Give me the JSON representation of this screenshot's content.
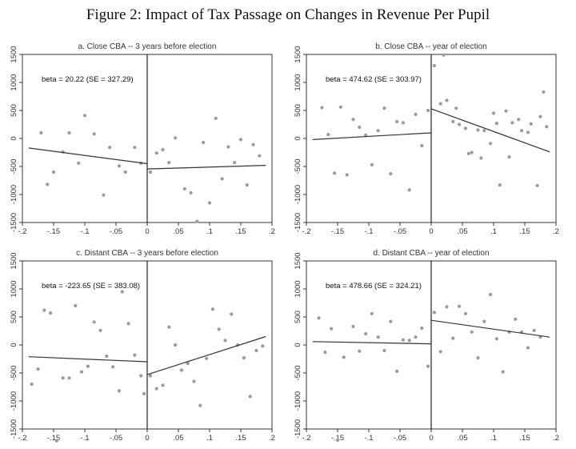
{
  "figure": {
    "title": "Figure 2: Impact of Tax Passage on Changes in Revenue Per Pupil"
  },
  "chart_data": [
    {
      "type": "scatter",
      "title": "a. Close CBA -- 3 years before election",
      "annotation": "beta = 20.22 (SE = 327.29)",
      "xlim": [
        -0.2,
        0.2
      ],
      "ylim": [
        -1500,
        1500
      ],
      "xticks": [
        -0.2,
        -0.15,
        -0.1,
        -0.05,
        0,
        0.05,
        0.1,
        0.15,
        0.2
      ],
      "xtick_labels": [
        "-.2",
        "-.15",
        "-.1",
        "-.05",
        "0",
        ".05",
        ".1",
        ".15",
        ".2"
      ],
      "yticks": [
        -1500,
        -1000,
        -500,
        0,
        500,
        1000,
        1500
      ],
      "ytick_labels": [
        "-1500",
        "-1000",
        "-500",
        "0",
        "500",
        "1000",
        "1500"
      ],
      "points": [
        [
          -0.17,
          100
        ],
        [
          -0.16,
          -820
        ],
        [
          -0.15,
          -600
        ],
        [
          -0.135,
          -240
        ],
        [
          -0.125,
          100
        ],
        [
          -0.11,
          -440
        ],
        [
          -0.1,
          410
        ],
        [
          -0.085,
          80
        ],
        [
          -0.07,
          -1010
        ],
        [
          -0.06,
          -160
        ],
        [
          -0.045,
          -490
        ],
        [
          -0.035,
          -600
        ],
        [
          -0.02,
          -160
        ],
        [
          -0.01,
          -440
        ],
        [
          0.005,
          -600
        ],
        [
          0.015,
          -260
        ],
        [
          0.025,
          -200
        ],
        [
          0.035,
          -430
        ],
        [
          0.045,
          10
        ],
        [
          0.06,
          -900
        ],
        [
          0.07,
          -970
        ],
        [
          0.08,
          -1480
        ],
        [
          0.09,
          -70
        ],
        [
          0.1,
          -1150
        ],
        [
          0.11,
          360
        ],
        [
          0.12,
          -720
        ],
        [
          0.13,
          -150
        ],
        [
          0.14,
          -430
        ],
        [
          0.15,
          -20
        ],
        [
          0.16,
          -830
        ],
        [
          0.17,
          -110
        ],
        [
          0.18,
          -310
        ]
      ],
      "fit_left": [
        [
          -0.19,
          -170
        ],
        [
          0,
          -450
        ]
      ],
      "fit_right": [
        [
          0,
          -545
        ],
        [
          0.19,
          -480
        ]
      ]
    },
    {
      "type": "scatter",
      "title": "b. Close CBA -- year of election",
      "annotation": "beta = 474.62 (SE = 303.97)",
      "xlim": [
        -0.2,
        0.2
      ],
      "ylim": [
        -1500,
        1500
      ],
      "xticks": [
        -0.2,
        -0.15,
        -0.1,
        -0.05,
        0,
        0.05,
        0.1,
        0.15,
        0.2
      ],
      "xtick_labels": [
        "-.2",
        "-.15",
        "-.1",
        "-.05",
        "0",
        ".05",
        ".1",
        ".15",
        ".2"
      ],
      "yticks": [
        -1500,
        -1000,
        -500,
        0,
        500,
        1000,
        1500
      ],
      "ytick_labels": [
        "-1500",
        "-1000",
        "-500",
        "0",
        "500",
        "1000",
        "1500"
      ],
      "points": [
        [
          -0.175,
          550
        ],
        [
          -0.165,
          70
        ],
        [
          -0.155,
          -620
        ],
        [
          -0.145,
          560
        ],
        [
          -0.135,
          -650
        ],
        [
          -0.125,
          340
        ],
        [
          -0.115,
          200
        ],
        [
          -0.105,
          60
        ],
        [
          -0.095,
          -470
        ],
        [
          -0.085,
          140
        ],
        [
          -0.075,
          540
        ],
        [
          -0.065,
          -630
        ],
        [
          -0.055,
          300
        ],
        [
          -0.045,
          280
        ],
        [
          -0.035,
          -920
        ],
        [
          -0.025,
          430
        ],
        [
          -0.015,
          -130
        ],
        [
          -0.005,
          500
        ],
        [
          0.005,
          1300
        ],
        [
          0.015,
          620
        ],
        [
          0.02,
          1490
        ],
        [
          0.025,
          680
        ],
        [
          0.035,
          300
        ],
        [
          0.04,
          540
        ],
        [
          0.045,
          250
        ],
        [
          0.055,
          180
        ],
        [
          0.06,
          -270
        ],
        [
          0.065,
          -250
        ],
        [
          0.075,
          150
        ],
        [
          0.08,
          -350
        ],
        [
          0.085,
          140
        ],
        [
          0.095,
          -90
        ],
        [
          0.1,
          450
        ],
        [
          0.105,
          270
        ],
        [
          0.11,
          -830
        ],
        [
          0.12,
          490
        ],
        [
          0.125,
          -330
        ],
        [
          0.13,
          280
        ],
        [
          0.14,
          340
        ],
        [
          0.145,
          140
        ],
        [
          0.155,
          110
        ],
        [
          0.16,
          260
        ],
        [
          0.17,
          -840
        ],
        [
          0.175,
          390
        ],
        [
          0.18,
          830
        ],
        [
          0.185,
          210
        ]
      ],
      "fit_left": [
        [
          -0.19,
          -20
        ],
        [
          0,
          100
        ]
      ],
      "fit_right": [
        [
          0,
          530
        ],
        [
          0.19,
          -240
        ]
      ]
    },
    {
      "type": "scatter",
      "title": "c. Distant CBA -- 3 years before election",
      "annotation": "beta = -223.65 (SE = 383.08)",
      "xlim": [
        -0.2,
        0.2
      ],
      "ylim": [
        -1500,
        1500
      ],
      "xticks": [
        -0.2,
        -0.15,
        -0.1,
        -0.05,
        0,
        0.05,
        0.1,
        0.15,
        0.2
      ],
      "xtick_labels": [
        "-.2",
        "-.15",
        "-.1",
        "-.05",
        "0",
        ".05",
        ".1",
        ".15",
        ".2"
      ],
      "yticks": [
        -1500,
        -1000,
        -500,
        0,
        500,
        1000,
        1500
      ],
      "ytick_labels": [
        "-1500",
        "-1000",
        "-500",
        "0",
        "500",
        "1000",
        "1500"
      ],
      "points": [
        [
          -0.185,
          -700
        ],
        [
          -0.175,
          -430
        ],
        [
          -0.165,
          620
        ],
        [
          -0.155,
          570
        ],
        [
          -0.145,
          -1710
        ],
        [
          -0.135,
          -590
        ],
        [
          -0.125,
          -590
        ],
        [
          -0.115,
          700
        ],
        [
          -0.105,
          -480
        ],
        [
          -0.095,
          -380
        ],
        [
          -0.085,
          410
        ],
        [
          -0.075,
          260
        ],
        [
          -0.065,
          -200
        ],
        [
          -0.055,
          -390
        ],
        [
          -0.045,
          -820
        ],
        [
          -0.04,
          950
        ],
        [
          -0.03,
          380
        ],
        [
          -0.02,
          -180
        ],
        [
          -0.01,
          -550
        ],
        [
          -0.005,
          -870
        ],
        [
          0.005,
          -550
        ],
        [
          0.015,
          -780
        ],
        [
          0.025,
          -720
        ],
        [
          0.035,
          320
        ],
        [
          0.045,
          0
        ],
        [
          0.055,
          -450
        ],
        [
          0.065,
          -330
        ],
        [
          0.075,
          -650
        ],
        [
          0.085,
          -1080
        ],
        [
          0.095,
          -240
        ],
        [
          0.105,
          640
        ],
        [
          0.115,
          280
        ],
        [
          0.125,
          80
        ],
        [
          0.135,
          550
        ],
        [
          0.145,
          0
        ],
        [
          0.155,
          -230
        ],
        [
          0.165,
          -920
        ],
        [
          0.175,
          -100
        ],
        [
          0.185,
          -20
        ]
      ],
      "fit_left": [
        [
          -0.19,
          -210
        ],
        [
          0,
          -300
        ]
      ],
      "fit_right": [
        [
          0,
          -530
        ],
        [
          0.19,
          150
        ]
      ]
    },
    {
      "type": "scatter",
      "title": "d. Distant CBA -- year of election",
      "annotation": "beta = 478.66 (SE = 324.21)",
      "xlim": [
        -0.2,
        0.2
      ],
      "ylim": [
        -1500,
        1500
      ],
      "xticks": [
        -0.2,
        -0.15,
        -0.1,
        -0.05,
        0,
        0.05,
        0.1,
        0.15,
        0.2
      ],
      "xtick_labels": [
        "-.2",
        "-.15",
        "-.1",
        "-.05",
        "0",
        ".05",
        ".1",
        ".15",
        ".2"
      ],
      "yticks": [
        -1500,
        -1000,
        -500,
        0,
        500,
        1000,
        1500
      ],
      "ytick_labels": [
        "-1500",
        "-1000",
        "-500",
        "0",
        "500",
        "1000",
        "1500"
      ],
      "points": [
        [
          -0.18,
          480
        ],
        [
          -0.17,
          -130
        ],
        [
          -0.16,
          290
        ],
        [
          -0.15,
          -1700
        ],
        [
          -0.14,
          -220
        ],
        [
          -0.125,
          330
        ],
        [
          -0.115,
          -110
        ],
        [
          -0.105,
          200
        ],
        [
          -0.095,
          560
        ],
        [
          -0.085,
          140
        ],
        [
          -0.075,
          -100
        ],
        [
          -0.065,
          420
        ],
        [
          -0.055,
          -470
        ],
        [
          -0.045,
          90
        ],
        [
          -0.035,
          80
        ],
        [
          -0.025,
          140
        ],
        [
          -0.015,
          300
        ],
        [
          -0.005,
          -380
        ],
        [
          0.005,
          580
        ],
        [
          0.015,
          -120
        ],
        [
          0.025,
          680
        ],
        [
          0.035,
          120
        ],
        [
          0.045,
          690
        ],
        [
          0.055,
          560
        ],
        [
          0.065,
          230
        ],
        [
          0.075,
          -230
        ],
        [
          0.085,
          420
        ],
        [
          0.095,
          900
        ],
        [
          0.105,
          110
        ],
        [
          0.115,
          -480
        ],
        [
          0.125,
          230
        ],
        [
          0.135,
          460
        ],
        [
          0.145,
          230
        ],
        [
          0.155,
          -50
        ],
        [
          0.165,
          260
        ],
        [
          0.175,
          140
        ]
      ],
      "fit_left": [
        [
          -0.19,
          60
        ],
        [
          0,
          20
        ]
      ],
      "fit_right": [
        [
          0,
          440
        ],
        [
          0.19,
          140
        ]
      ]
    }
  ]
}
